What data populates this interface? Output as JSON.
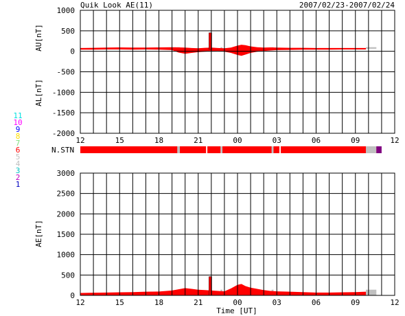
{
  "title": "Quik Look AE(11)",
  "date_range": "2007/02/23-2007/02/24",
  "xlabel": "Time [UT]",
  "station_label": "N.STN",
  "colors": {
    "data": "#ff0000",
    "missing": "#c0c0c0",
    "grid": "#000000",
    "purple": "#800080"
  },
  "station_legend": [
    {
      "label": "11",
      "color": "#00e0e0"
    },
    {
      "label": "10",
      "color": "#ff00ff"
    },
    {
      "label": "9",
      "color": "#0000ff"
    },
    {
      "label": "8",
      "color": "#ffe000"
    },
    {
      "label": "7",
      "color": "#80e080"
    },
    {
      "label": "6",
      "color": "#ff0000"
    },
    {
      "label": "5",
      "color": "#c0c0c0"
    },
    {
      "label": "4",
      "color": "#c0c0c0"
    },
    {
      "label": "3",
      "color": "#00c0c0"
    },
    {
      "label": "2",
      "color": "#c000c0"
    },
    {
      "label": "1",
      "color": "#0000c0"
    }
  ],
  "chart_data": [
    {
      "type": "area",
      "panel": "AU/AL",
      "ylabel_upper": "AU[nT]",
      "ylabel_lower": "AL[nT]",
      "ylim": [
        -2000,
        1000
      ],
      "yticks": [
        1000,
        500,
        0,
        -500,
        -1000,
        -1500,
        -2000
      ],
      "x_hours_range": [
        12,
        36
      ],
      "xtick_labels": [
        "12",
        "15",
        "18",
        "21",
        "00",
        "03",
        "06",
        "09",
        "12"
      ],
      "grid": true,
      "au": {
        "x": [
          12,
          13,
          14,
          15,
          16,
          17,
          18,
          19,
          19.5,
          20,
          20.5,
          21,
          21.5,
          22,
          22.5,
          23,
          23.5,
          24,
          24.3,
          24.6,
          25,
          25.5,
          26,
          26.5,
          27,
          28,
          29,
          30,
          31,
          32,
          33,
          33.8
        ],
        "y": [
          80,
          85,
          90,
          95,
          90,
          90,
          95,
          100,
          95,
          90,
          80,
          75,
          85,
          90,
          80,
          75,
          90,
          140,
          160,
          150,
          120,
          100,
          90,
          95,
          90,
          85,
          85,
          80,
          80,
          80,
          80,
          80
        ]
      },
      "al": {
        "x": [
          12,
          13,
          14,
          15,
          16,
          17,
          18,
          19,
          19.5,
          20,
          20.5,
          21,
          21.5,
          22,
          22.5,
          23,
          23.5,
          24,
          24.3,
          24.6,
          25,
          25.5,
          26,
          26.5,
          27,
          28,
          29,
          30,
          31,
          32,
          33,
          33.8
        ],
        "y": [
          40,
          40,
          45,
          45,
          40,
          45,
          40,
          30,
          -30,
          -60,
          -40,
          -20,
          -10,
          0,
          10,
          -10,
          -40,
          -90,
          -110,
          -80,
          -40,
          -10,
          10,
          20,
          30,
          35,
          40,
          40,
          40,
          45,
          45,
          45
        ]
      },
      "spike": {
        "x": 21.9,
        "au": 450,
        "al": 50
      },
      "missing_spans": [
        [
          19.4,
          19.6
        ],
        [
          22.7,
          22.85
        ],
        [
          26.6,
          26.75
        ],
        [
          33.8,
          34.6
        ]
      ]
    },
    {
      "type": "area",
      "panel": "AE",
      "ylabel": "AE[nT]",
      "ylim": [
        0,
        3000
      ],
      "yticks": [
        3000,
        2500,
        2000,
        1500,
        1000,
        500,
        0
      ],
      "x_hours_range": [
        12,
        36
      ],
      "xtick_labels": [
        "12",
        "15",
        "18",
        "21",
        "00",
        "03",
        "06",
        "09",
        "12"
      ],
      "grid": true,
      "ae": {
        "x": [
          12,
          13,
          14,
          15,
          16,
          17,
          18,
          19,
          19.5,
          20,
          20.5,
          21,
          21.5,
          22,
          22.5,
          23,
          23.5,
          24,
          24.3,
          24.6,
          25,
          25.5,
          26,
          26.5,
          27,
          28,
          29,
          30,
          31,
          32,
          33,
          33.8
        ],
        "y": [
          60,
          65,
          70,
          75,
          80,
          90,
          95,
          120,
          150,
          180,
          160,
          140,
          130,
          120,
          110,
          100,
          170,
          260,
          280,
          230,
          190,
          160,
          130,
          110,
          100,
          90,
          80,
          70,
          70,
          75,
          80,
          90
        ]
      },
      "spike": {
        "x": 21.9,
        "ae": 460
      },
      "missing_spans": [
        [
          19.4,
          19.6
        ],
        [
          22.7,
          22.85
        ],
        [
          26.6,
          26.75
        ],
        [
          33.8,
          34.6
        ]
      ]
    }
  ],
  "station_bar": {
    "end_hour": 34.6,
    "missing_spans": [
      [
        19.4,
        19.6
      ],
      [
        21.6,
        21.7
      ],
      [
        22.7,
        22.85
      ],
      [
        26.6,
        26.75
      ],
      [
        27.2,
        27.3
      ],
      [
        33.8,
        34.6
      ]
    ],
    "purple_span": [
      34.6,
      35.0
    ]
  }
}
